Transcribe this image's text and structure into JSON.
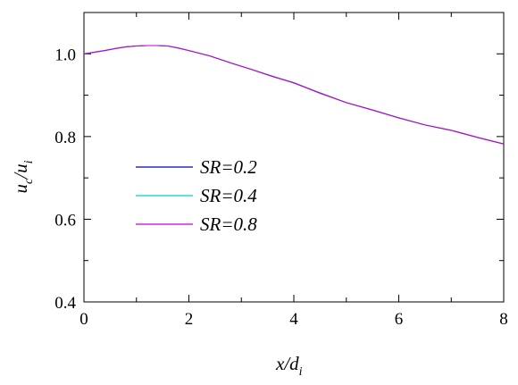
{
  "chart_data": {
    "type": "line",
    "xlabel": "x/d_i",
    "xlabel_parts": {
      "main": "x/d",
      "sub": "i"
    },
    "ylabel": "u_c/u_i",
    "ylabel_parts": {
      "a": "u",
      "a_sub": "c",
      "b": "/u",
      "b_sub": "i"
    },
    "xlim": [
      0,
      8
    ],
    "ylim": [
      0.4,
      1.1
    ],
    "xticks": [
      0,
      2,
      4,
      6,
      8
    ],
    "xtick_labels": [
      "0",
      "2",
      "4",
      "6",
      "8"
    ],
    "yticks": [
      0.4,
      0.6,
      0.8,
      1.0
    ],
    "ytick_labels": [
      "0.4",
      "0.6",
      "0.8",
      "1.0"
    ],
    "grid": false,
    "legend_position": "center-left",
    "series": [
      {
        "name": "SR=0.2",
        "color": "#0000cc",
        "x": [
          0,
          0.2,
          0.4,
          0.6,
          0.8,
          1.0,
          1.2,
          1.4,
          1.6,
          1.8,
          2.0,
          2.4,
          2.8,
          3.2,
          3.6,
          4.0,
          4.5,
          5.0,
          5.5,
          6.0,
          6.5,
          7.0,
          7.5,
          8.0
        ],
        "y": [
          1.0,
          1.004,
          1.008,
          1.013,
          1.017,
          1.019,
          1.02,
          1.02,
          1.019,
          1.014,
          1.008,
          0.995,
          0.978,
          0.962,
          0.945,
          0.93,
          0.905,
          0.882,
          0.864,
          0.845,
          0.828,
          0.815,
          0.798,
          0.782
        ]
      },
      {
        "name": "SR=0.4",
        "color": "#00cccc",
        "x": [
          0,
          0.2,
          0.4,
          0.6,
          0.8,
          1.0,
          1.2,
          1.4,
          1.6,
          1.8,
          2.0,
          2.4,
          2.8,
          3.2,
          3.6,
          4.0,
          4.5,
          5.0,
          5.5,
          6.0,
          6.5,
          7.0,
          7.5,
          8.0
        ],
        "y": [
          1.0,
          1.004,
          1.008,
          1.013,
          1.017,
          1.019,
          1.02,
          1.02,
          1.019,
          1.014,
          1.008,
          0.995,
          0.978,
          0.962,
          0.946,
          0.929,
          0.906,
          0.882,
          0.864,
          0.846,
          0.828,
          0.815,
          0.798,
          0.782
        ]
      },
      {
        "name": "SR=0.8",
        "color": "#cc00cc",
        "x": [
          0,
          0.2,
          0.4,
          0.6,
          0.8,
          1.0,
          1.2,
          1.4,
          1.6,
          1.8,
          2.0,
          2.4,
          2.8,
          3.2,
          3.6,
          4.0,
          4.5,
          5.0,
          5.5,
          6.0,
          6.5,
          7.0,
          7.5,
          8.0
        ],
        "y": [
          1.0,
          1.004,
          1.008,
          1.013,
          1.017,
          1.019,
          1.02,
          1.02,
          1.019,
          1.014,
          1.008,
          0.995,
          0.978,
          0.962,
          0.945,
          0.93,
          0.905,
          0.882,
          0.864,
          0.845,
          0.828,
          0.815,
          0.798,
          0.782
        ]
      }
    ]
  }
}
